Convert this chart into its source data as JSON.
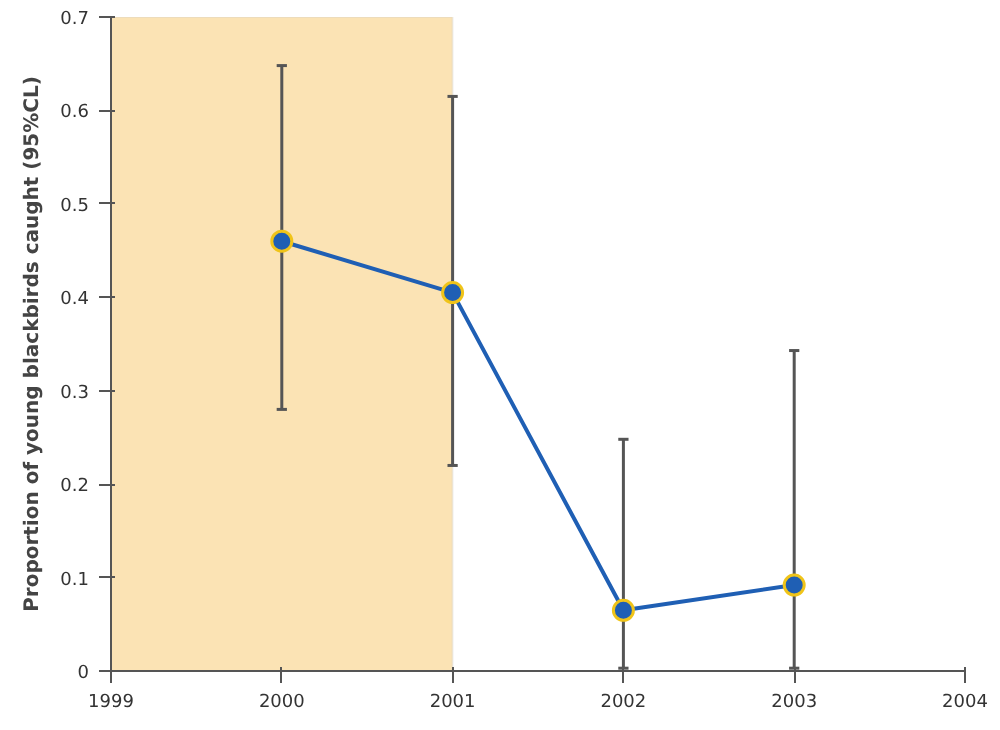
{
  "chart_data": {
    "type": "line",
    "ylabel": "Proportion of young blackbirds caught (95%CL)",
    "x": [
      2000,
      2001,
      2002,
      2003
    ],
    "series": [
      {
        "color": "#1f5fb4",
        "values": [
          0.46,
          0.405,
          0.065,
          0.092
        ],
        "errors": [
          [
            0.28,
            0.648
          ],
          [
            0.22,
            0.615
          ],
          [
            0.003,
            0.248
          ],
          [
            0.003,
            0.343
          ]
        ]
      }
    ],
    "xlim": [
      1999,
      2004
    ],
    "xticks": [
      1999,
      2000,
      2001,
      2002,
      2003,
      2004
    ],
    "ylim": [
      0,
      0.7
    ],
    "yticks": [
      0,
      0.1,
      0.2,
      0.3,
      0.4,
      0.5,
      0.6,
      0.7
    ],
    "bands": [
      {
        "axis": "x",
        "from": 1999,
        "to": 2001,
        "color": "#fbe3b4"
      }
    ],
    "marker": "circle",
    "line_style": "solid",
    "grid": false
  }
}
